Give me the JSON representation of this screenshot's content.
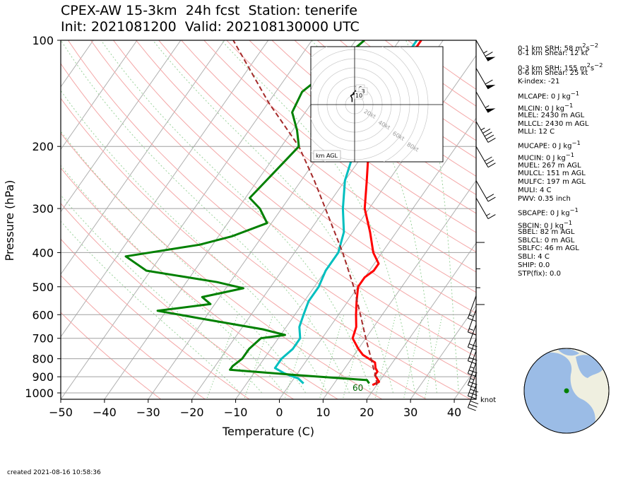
{
  "title": {
    "line1": "CPEX-AW 15-3km  24h fcst  Station: tenerife",
    "line2": "Init: 2021081200  Valid: 202108130000 UTC"
  },
  "created": "created 2021-08-16 10:58:36",
  "chart_data": {
    "type": "line",
    "subtype": "skew-T log-P",
    "xlabel": "Temperature (C)",
    "ylabel": "Pressure (hPa)",
    "xlim": [
      -50,
      45
    ],
    "ylim": [
      1050,
      100
    ],
    "yscale": "log",
    "xticks": [
      -50,
      -40,
      -30,
      -20,
      -10,
      0,
      10,
      20,
      30,
      40
    ],
    "xtick_labels": [
      "−50",
      "−40",
      "−30",
      "−20",
      "−10",
      "0",
      "10",
      "20",
      "30",
      "40"
    ],
    "yticks": [
      100,
      200,
      300,
      400,
      500,
      600,
      700,
      800,
      900,
      1000
    ],
    "grid": true,
    "wind_unit": "knot",
    "annotation": "60",
    "series": [
      {
        "key": "temperature",
        "color": "#ff0000",
        "points": [
          [
            100,
            -25
          ],
          [
            120,
            -25
          ],
          [
            140,
            -25
          ],
          [
            170,
            -23
          ],
          [
            200,
            -20
          ],
          [
            250,
            -15
          ],
          [
            300,
            -11
          ],
          [
            350,
            -6
          ],
          [
            400,
            -2
          ],
          [
            430,
            1
          ],
          [
            450,
            1
          ],
          [
            470,
            0
          ],
          [
            500,
            0
          ],
          [
            550,
            2
          ],
          [
            600,
            4
          ],
          [
            650,
            6
          ],
          [
            700,
            7
          ],
          [
            750,
            10
          ],
          [
            780,
            12
          ],
          [
            800,
            14
          ],
          [
            820,
            16
          ],
          [
            850,
            17
          ],
          [
            870,
            18
          ],
          [
            890,
            18
          ],
          [
            910,
            19
          ],
          [
            930,
            20
          ],
          [
            950,
            19
          ]
        ]
      },
      {
        "key": "dewpoint",
        "color": "#00bfbf",
        "points": [
          [
            100,
            -26
          ],
          [
            120,
            -26
          ],
          [
            140,
            -26
          ],
          [
            170,
            -25
          ],
          [
            200,
            -23
          ],
          [
            250,
            -20
          ],
          [
            300,
            -16
          ],
          [
            350,
            -12
          ],
          [
            400,
            -10
          ],
          [
            450,
            -10
          ],
          [
            500,
            -9
          ],
          [
            550,
            -9
          ],
          [
            600,
            -8
          ],
          [
            650,
            -7
          ],
          [
            700,
            -5
          ],
          [
            750,
            -5
          ],
          [
            800,
            -6
          ],
          [
            850,
            -6
          ],
          [
            880,
            -3
          ],
          [
            910,
            1
          ],
          [
            940,
            3
          ]
        ]
      },
      {
        "key": "parcel",
        "color": "#a52a2a",
        "dashed": true,
        "points": [
          [
            950,
            20
          ],
          [
            900,
            18.5
          ],
          [
            850,
            16.5
          ],
          [
            800,
            14.5
          ],
          [
            700,
            10
          ],
          [
            600,
            5
          ],
          [
            500,
            -1
          ],
          [
            400,
            -9
          ],
          [
            300,
            -20
          ],
          [
            250,
            -27
          ],
          [
            200,
            -36
          ],
          [
            150,
            -50
          ],
          [
            100,
            -68
          ]
        ]
      },
      {
        "key": "wetbulb",
        "color": "#008000",
        "points": [
          [
            100,
            -38
          ],
          [
            120,
            -41
          ],
          [
            140,
            -44
          ],
          [
            160,
            -43
          ],
          [
            180,
            -39
          ],
          [
            200,
            -36
          ],
          [
            250,
            -38
          ],
          [
            280,
            -39
          ],
          [
            300,
            -35
          ],
          [
            330,
            -31
          ],
          [
            360,
            -37
          ],
          [
            380,
            -43
          ],
          [
            410,
            -58
          ],
          [
            450,
            -51
          ],
          [
            485,
            -33
          ],
          [
            505,
            -26
          ],
          [
            535,
            -34
          ],
          [
            560,
            -31
          ],
          [
            585,
            -42
          ],
          [
            615,
            -31
          ],
          [
            660,
            -15
          ],
          [
            685,
            -9
          ],
          [
            700,
            -14
          ],
          [
            750,
            -15
          ],
          [
            780,
            -15
          ],
          [
            800,
            -15
          ],
          [
            840,
            -16
          ],
          [
            860,
            -16
          ],
          [
            890,
            0
          ],
          [
            920,
            17
          ],
          [
            940,
            18
          ]
        ]
      }
    ],
    "wind_barbs": [
      {
        "p": 100,
        "speed": 65
      },
      {
        "p": 120,
        "speed": 60
      },
      {
        "p": 140,
        "speed": 55
      },
      {
        "p": 170,
        "speed": 45
      },
      {
        "p": 200,
        "speed": 30
      },
      {
        "p": 250,
        "speed": 20
      },
      {
        "p": 280,
        "speed": 15
      },
      {
        "p": 320,
        "speed": 10
      },
      {
        "p": 380,
        "speed": 5
      },
      {
        "p": 430,
        "speed": 5
      },
      {
        "p": 480,
        "speed": 10
      },
      {
        "p": 530,
        "speed": 15
      },
      {
        "p": 580,
        "speed": 15
      },
      {
        "p": 640,
        "speed": 20
      },
      {
        "p": 700,
        "speed": 20
      },
      {
        "p": 760,
        "speed": 25
      },
      {
        "p": 820,
        "speed": 25
      },
      {
        "p": 880,
        "speed": 30
      },
      {
        "p": 950,
        "speed": 30
      }
    ],
    "hodograph": {
      "rings_labels": [
        "20kt",
        "40kt",
        "60kt",
        "80kt"
      ],
      "level_labels": [
        "6",
        "3",
        "10"
      ],
      "legend": "km AGL",
      "points": [
        [
          -4,
          4
        ],
        [
          -4,
          10
        ],
        [
          -6,
          14
        ],
        [
          -3,
          16
        ],
        [
          2,
          17
        ],
        [
          -2,
          18
        ],
        [
          2,
          22
        ],
        [
          3,
          20
        ],
        [
          6,
          26
        ],
        [
          2,
          29
        ]
      ]
    }
  },
  "indices": [
    {
      "html": "0-1 km SRH: 58 m<sup>2</sup>s<sup>−2</sup>"
    },
    {
      "html": "0-1 km Shear: 12 kt"
    },
    {
      "html": "0-3 km SRH: 155 m<sup>2</sup>s<sup>−2</sup>"
    },
    {
      "html": "0-6 km Shear: 25 kt"
    },
    {
      "html": "K-index: -21"
    },
    {
      "html": "MLCAPE: 0 J kg<sup>−1</sup>"
    },
    {
      "html": "MLCIN: 0 J kg<sup>−1</sup>"
    },
    {
      "html": "MLEL: 2430 m AGL"
    },
    {
      "html": "MLLCL: 2430 m AGL"
    },
    {
      "html": "MLLI: 12 C"
    },
    {
      "html": "MUCAPE: 0 J kg<sup>−1</sup>"
    },
    {
      "html": "MUCIN: 0 J kg<sup>−1</sup>"
    },
    {
      "html": "MUEL: 267 m AGL"
    },
    {
      "html": "MULCL: 151 m AGL"
    },
    {
      "html": "MULFC: 197 m AGL"
    },
    {
      "html": "MULI: 4 C"
    },
    {
      "html": "PWV: 0.35 inch"
    },
    {
      "html": "SBCAPE: 0 J kg<sup>−1</sup>"
    },
    {
      "html": "SBCIN: 0 J kg<sup>−1</sup>"
    },
    {
      "html": "SBEL: 82 m AGL"
    },
    {
      "html": "SBLCL: 0 m AGL"
    },
    {
      "html": "SBLFC: 46 m AGL"
    },
    {
      "html": "SBLI: 4 C"
    },
    {
      "html": "SHIP: 0.0"
    },
    {
      "html": "STP(fix): 0.0"
    }
  ],
  "colors": {
    "temperature": "#ff0000",
    "dewpoint": "#00bfbf",
    "wetbulb": "#008000",
    "parcel": "#a52a2a",
    "dry_adiabat": "#f4a7a7",
    "moist_adiabat": "#9ad29a",
    "isotherm": "#b0b0b0",
    "globe_ocean": "#9bbce6",
    "globe_land": "#efefe0"
  }
}
